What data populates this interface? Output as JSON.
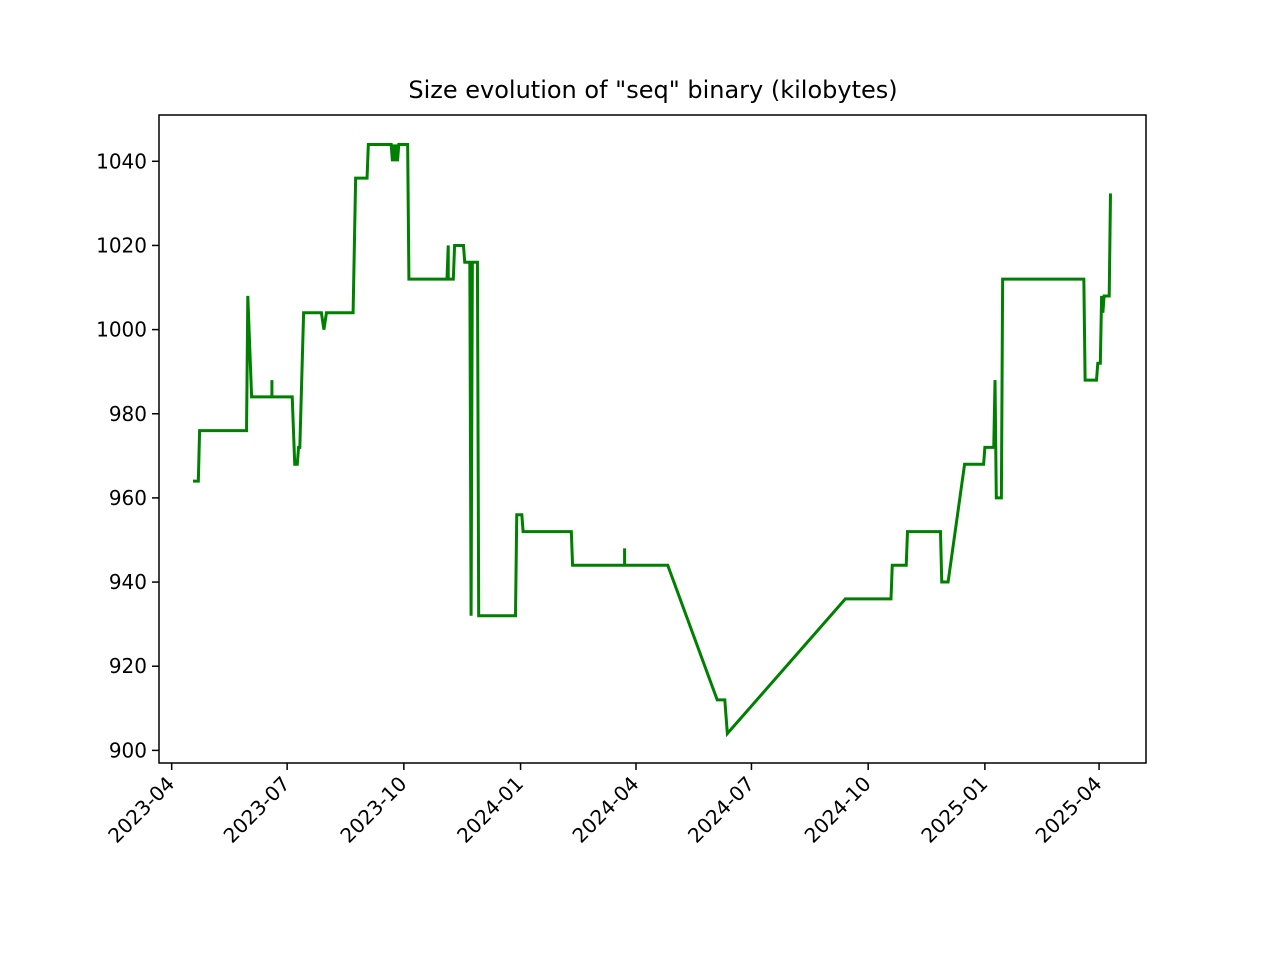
{
  "chart_data": {
    "type": "line",
    "title": "Size evolution of \"seq\" binary (kilobytes)",
    "xlabel": "",
    "ylabel": "",
    "grid": false,
    "x_axis_type": "date",
    "xlim": [
      "2023-03-22",
      "2025-05-08"
    ],
    "ylim": [
      897,
      1051
    ],
    "x_ticks": [
      "2023-04-01",
      "2023-07-01",
      "2023-10-01",
      "2024-01-01",
      "2024-04-01",
      "2024-07-01",
      "2024-10-01",
      "2025-01-01",
      "2025-04-01"
    ],
    "x_tick_labels": [
      "2023-04",
      "2023-07",
      "2023-10",
      "2024-01",
      "2024-04",
      "2024-07",
      "2024-10",
      "2025-01",
      "2025-04"
    ],
    "y_ticks": [
      900,
      920,
      940,
      960,
      980,
      1000,
      1020,
      1040
    ],
    "y_tick_labels": [
      "900",
      "920",
      "940",
      "960",
      "980",
      "1000",
      "1020",
      "1040"
    ],
    "series": [
      {
        "color": "#008000",
        "points": [
          [
            "2023-04-19",
            964
          ],
          [
            "2023-04-22",
            964
          ],
          [
            "2023-04-23",
            976
          ],
          [
            "2023-05-30",
            976
          ],
          [
            "2023-05-31",
            1008
          ],
          [
            "2023-06-03",
            984
          ],
          [
            "2023-06-19",
            984
          ],
          [
            "2023-06-19",
            988
          ],
          [
            "2023-06-19",
            984
          ],
          [
            "2023-07-05",
            984
          ],
          [
            "2023-07-07",
            968
          ],
          [
            "2023-07-09",
            968
          ],
          [
            "2023-07-10",
            972
          ],
          [
            "2023-07-11",
            972
          ],
          [
            "2023-07-14",
            1004
          ],
          [
            "2023-07-28",
            1004
          ],
          [
            "2023-07-30",
            1000
          ],
          [
            "2023-08-01",
            1004
          ],
          [
            "2023-08-22",
            1004
          ],
          [
            "2023-08-24",
            1036
          ],
          [
            "2023-09-02",
            1036
          ],
          [
            "2023-09-03",
            1044
          ],
          [
            "2023-09-21",
            1044
          ],
          [
            "2023-09-22",
            1040
          ],
          [
            "2023-09-23",
            1044
          ],
          [
            "2023-09-24",
            1040
          ],
          [
            "2023-09-25",
            1044
          ],
          [
            "2023-09-26",
            1040
          ],
          [
            "2023-09-27",
            1044
          ],
          [
            "2023-10-04",
            1044
          ],
          [
            "2023-10-05",
            1012
          ],
          [
            "2023-11-04",
            1012
          ],
          [
            "2023-11-05",
            1020
          ],
          [
            "2023-11-05",
            1012
          ],
          [
            "2023-11-09",
            1012
          ],
          [
            "2023-11-10",
            1020
          ],
          [
            "2023-11-17",
            1020
          ],
          [
            "2023-11-18",
            1016
          ],
          [
            "2023-11-22",
            1016
          ],
          [
            "2023-11-23",
            932
          ],
          [
            "2023-11-24",
            1016
          ],
          [
            "2023-11-28",
            1016
          ],
          [
            "2023-11-29",
            932
          ],
          [
            "2023-12-28",
            932
          ],
          [
            "2023-12-29",
            956
          ],
          [
            "2024-01-02",
            956
          ],
          [
            "2024-01-03",
            952
          ],
          [
            "2024-02-10",
            952
          ],
          [
            "2024-02-11",
            944
          ],
          [
            "2024-03-23",
            944
          ],
          [
            "2024-03-23",
            948
          ],
          [
            "2024-03-23",
            944
          ],
          [
            "2024-04-26",
            944
          ],
          [
            "2024-06-04",
            912
          ],
          [
            "2024-06-10",
            912
          ],
          [
            "2024-06-12",
            904
          ],
          [
            "2024-09-13",
            936
          ],
          [
            "2024-10-19",
            936
          ],
          [
            "2024-10-20",
            944
          ],
          [
            "2024-10-31",
            944
          ],
          [
            "2024-11-01",
            952
          ],
          [
            "2024-11-27",
            952
          ],
          [
            "2024-11-28",
            940
          ],
          [
            "2024-12-03",
            940
          ],
          [
            "2024-12-16",
            968
          ],
          [
            "2024-12-31",
            968
          ],
          [
            "2025-01-01",
            972
          ],
          [
            "2025-01-08",
            972
          ],
          [
            "2025-01-09",
            988
          ],
          [
            "2025-01-10",
            960
          ],
          [
            "2025-01-14",
            960
          ],
          [
            "2025-01-15",
            1012
          ],
          [
            "2025-03-20",
            1012
          ],
          [
            "2025-03-21",
            988
          ],
          [
            "2025-03-30",
            988
          ],
          [
            "2025-03-31",
            992
          ],
          [
            "2025-04-02",
            992
          ],
          [
            "2025-04-03",
            1008
          ],
          [
            "2025-04-04",
            1004
          ],
          [
            "2025-04-05",
            1008
          ],
          [
            "2025-04-09",
            1008
          ],
          [
            "2025-04-10",
            1032
          ]
        ]
      }
    ]
  }
}
